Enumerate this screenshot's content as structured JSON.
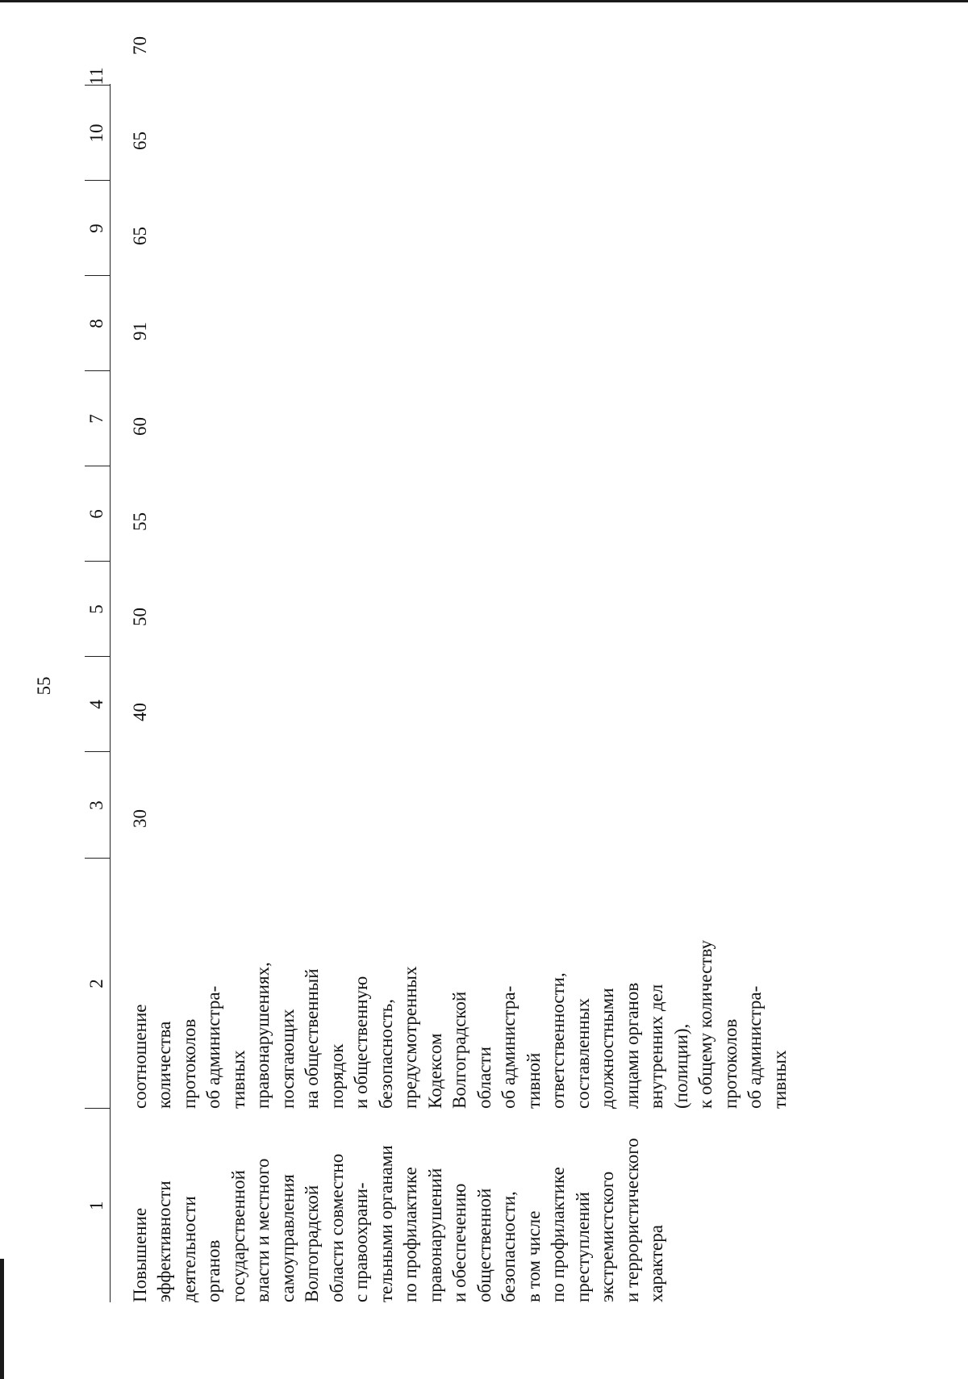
{
  "page_number": "55",
  "table": {
    "headers": [
      "1",
      "2",
      "3",
      "4",
      "5",
      "6",
      "7",
      "8",
      "9",
      "10",
      "11"
    ],
    "row": {
      "col1_lines": [
        "Повышение",
        "эффективности",
        "деятельности",
        "органов",
        "государственной",
        "власти и местного",
        "самоуправления",
        "Волгоградской",
        "области совместно",
        "с правоохрани-",
        "тельными органами",
        "по профилактике",
        "правонарушений",
        "и обеспечению",
        "общественной",
        "безопасности,",
        "в том числе",
        "по профилактике",
        "преступлений",
        "экстремистского",
        "и террористического",
        "характера"
      ],
      "col2_lines": [
        "соотношение",
        "количества",
        "протоколов",
        "об администра-",
        "тивных",
        "правонарушениях,",
        "посягающих",
        "на общественный",
        "порядок",
        "и общественную",
        "безопасность,",
        "предусмотренных",
        "Кодексом",
        "Волгоградской",
        "области",
        "об администра-",
        "тивной",
        "ответственности,",
        "составленных",
        "должностными",
        "лицами органов",
        "внутренних дел",
        "(полиции),",
        "к общему количеству",
        "протоколов",
        "об администра-",
        "тивных"
      ],
      "values": [
        "30",
        "40",
        "50",
        "55",
        "60",
        "91",
        "65",
        "65",
        "70"
      ]
    }
  }
}
